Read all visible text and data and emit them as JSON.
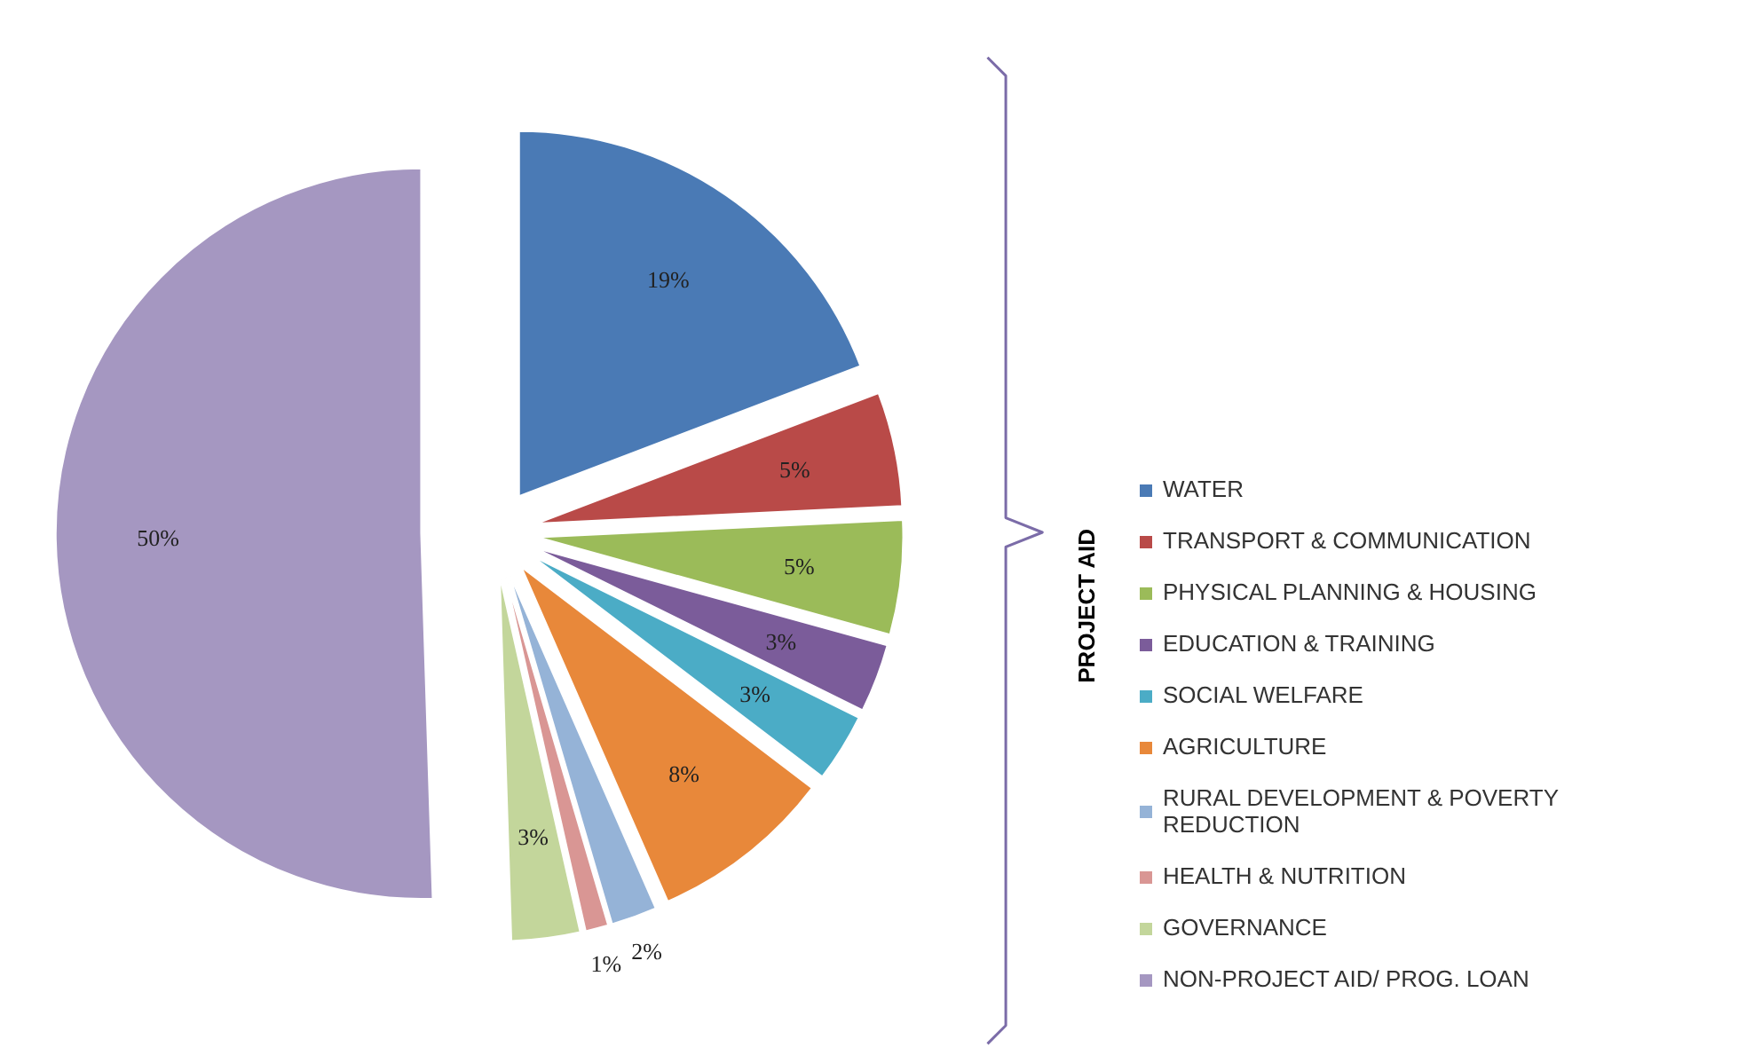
{
  "chart_data": {
    "type": "pie",
    "categories": [
      "WATER",
      "TRANSPORT & COMMUNICATION",
      "PHYSICAL PLANNING & HOUSING",
      "EDUCATION & TRAINING",
      "SOCIAL WELFARE",
      "AGRICULTURE",
      "RURAL DEVELOPMENT & POVERTY REDUCTION",
      "HEALTH & NUTRITION",
      "GOVERNANCE",
      "NON-PROJECT AID/ PROG. LOAN"
    ],
    "values": [
      19,
      5,
      5,
      3,
      3,
      8,
      2,
      1,
      3,
      50
    ],
    "colors": [
      "#4a7ab5",
      "#b94a48",
      "#9bbb59",
      "#7b5c9a",
      "#4bacc6",
      "#e8883a",
      "#95b3d7",
      "#d99694",
      "#c3d69b",
      "#a597c1"
    ],
    "value_labels": [
      "19%",
      "5%",
      "5%",
      "3%",
      "3%",
      "8%",
      "2%",
      "1%",
      "3%",
      "50%"
    ],
    "legend": "right",
    "annotations": [
      "PROJECT AID"
    ]
  }
}
